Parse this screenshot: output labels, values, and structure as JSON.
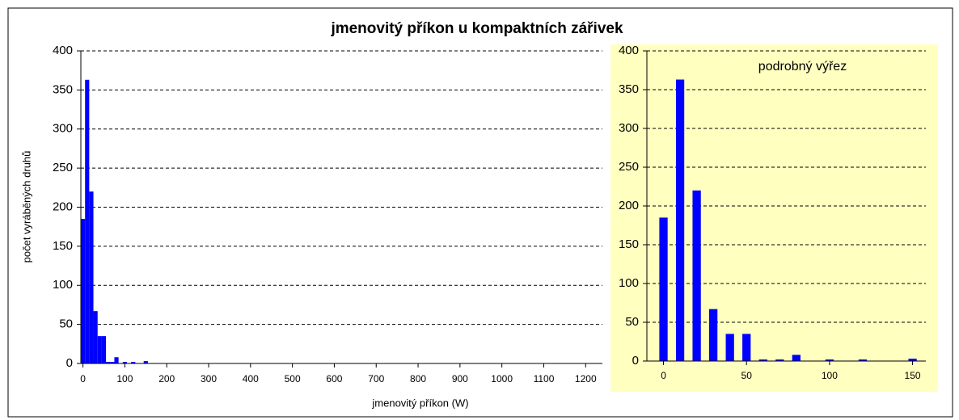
{
  "chart_data": [
    {
      "type": "bar",
      "title": "jmenovitý příkon u kompaktních zářivek",
      "xlabel": "jmenovitý příkon (W)",
      "ylabel": "počet vyráběných druhů",
      "x": [
        0,
        10,
        20,
        30,
        40,
        50,
        60,
        70,
        80,
        90,
        100,
        110,
        120,
        130,
        140,
        150
      ],
      "values": [
        185,
        363,
        220,
        67,
        35,
        35,
        2,
        2,
        8,
        0,
        2,
        0,
        2,
        0,
        0,
        3
      ],
      "color": "#0000ff",
      "xlim": [
        -5,
        1240
      ],
      "xticks": [
        0,
        100,
        200,
        300,
        400,
        500,
        600,
        700,
        800,
        900,
        1000,
        1100,
        1200
      ],
      "ylim": [
        0,
        400
      ],
      "yticks": [
        0,
        50,
        100,
        150,
        200,
        250,
        300,
        350,
        400
      ],
      "grid": true
    },
    {
      "type": "bar",
      "annotation": "podrobný výřez",
      "x": [
        0,
        10,
        20,
        30,
        40,
        50,
        60,
        70,
        80,
        90,
        100,
        110,
        120,
        130,
        140,
        150
      ],
      "values": [
        185,
        363,
        220,
        67,
        35,
        35,
        2,
        2,
        8,
        0,
        2,
        0,
        2,
        0,
        0,
        3
      ],
      "color": "#0000ff",
      "background": "#ffffc0",
      "xlim": [
        -10,
        158
      ],
      "xticks": [
        0,
        50,
        100,
        150
      ],
      "ylim": [
        0,
        400
      ],
      "yticks": [
        0,
        50,
        100,
        150,
        200,
        250,
        300,
        350,
        400
      ],
      "grid": true
    }
  ]
}
